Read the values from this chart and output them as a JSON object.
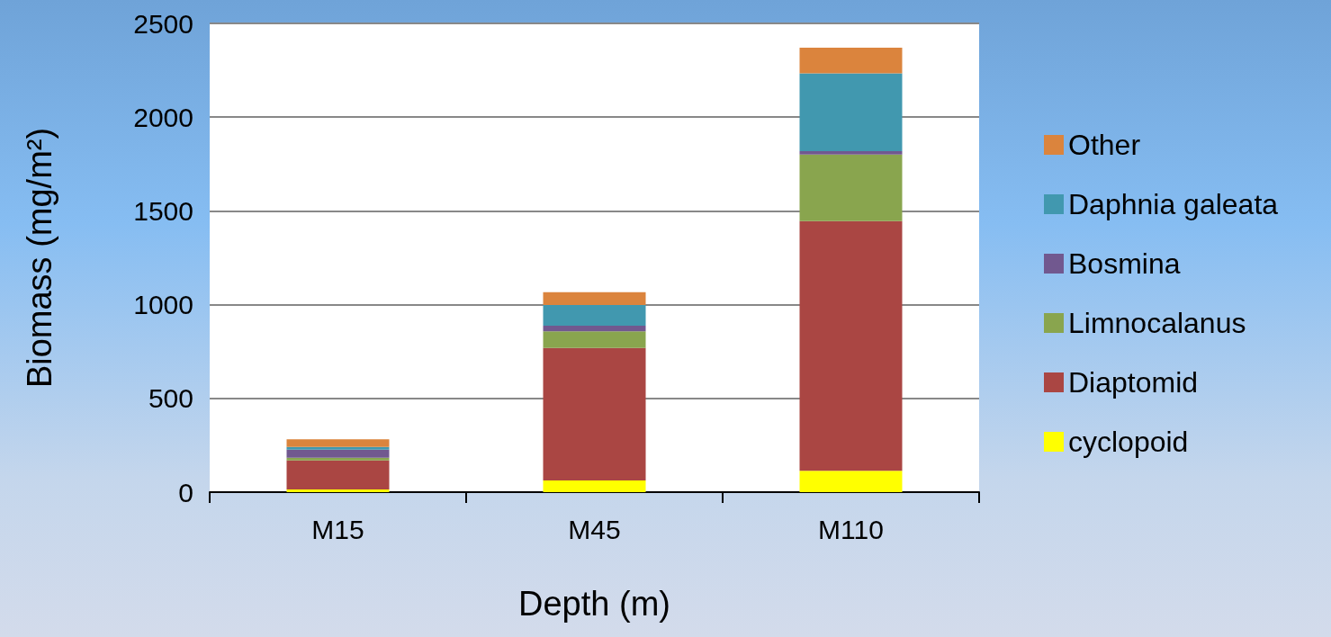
{
  "chart_data": {
    "type": "bar",
    "stacked": true,
    "xlabel": "Depth (m)",
    "ylabel": "Biomass (mg/m²)",
    "categories": [
      "M15",
      "M45",
      "M110"
    ],
    "series": [
      {
        "name": "cyclopoid",
        "color": "#ffff00",
        "values": [
          14,
          62,
          114
        ]
      },
      {
        "name": "Diaptomid",
        "color": "#aa4643",
        "values": [
          155,
          707,
          1331
        ]
      },
      {
        "name": "Limnocalanus",
        "color": "#89a54e",
        "values": [
          15,
          89,
          356
        ]
      },
      {
        "name": "Bosmina",
        "color": "#71588f",
        "values": [
          43,
          30,
          18
        ]
      },
      {
        "name": "Daphnia galeata",
        "color": "#4198af",
        "values": [
          14,
          110,
          415
        ]
      },
      {
        "name": "Other",
        "color": "#db843d",
        "values": [
          41,
          68,
          136
        ]
      }
    ],
    "ylim": [
      0,
      2500
    ],
    "yticks": [
      0,
      500,
      1000,
      1500,
      2000,
      2500
    ],
    "grid": "y",
    "legend": "right"
  }
}
